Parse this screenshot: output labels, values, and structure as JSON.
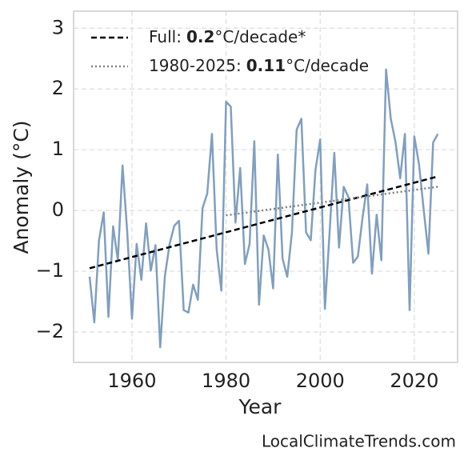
{
  "chart_data": {
    "type": "line",
    "xlabel": "Year",
    "ylabel": "Anomaly (°C)",
    "source": "LocalClimateTrends.com",
    "x": [
      1951,
      1952,
      1953,
      1954,
      1955,
      1956,
      1957,
      1958,
      1959,
      1960,
      1961,
      1962,
      1963,
      1964,
      1965,
      1966,
      1967,
      1968,
      1969,
      1970,
      1971,
      1972,
      1973,
      1974,
      1975,
      1976,
      1977,
      1978,
      1979,
      1980,
      1981,
      1982,
      1983,
      1984,
      1985,
      1986,
      1987,
      1988,
      1989,
      1990,
      1991,
      1992,
      1993,
      1994,
      1995,
      1996,
      1997,
      1998,
      1999,
      2000,
      2001,
      2002,
      2003,
      2004,
      2005,
      2006,
      2007,
      2008,
      2009,
      2010,
      2011,
      2012,
      2013,
      2014,
      2015,
      2016,
      2017,
      2018,
      2019,
      2020,
      2021,
      2022,
      2023,
      2024,
      2025
    ],
    "series": [
      {
        "color": "#809fc0",
        "values": [
          -1.09,
          -1.84,
          -0.49,
          -0.03,
          -1.75,
          -0.26,
          -0.82,
          0.74,
          -0.36,
          -1.78,
          -0.55,
          -1.14,
          -0.21,
          -0.99,
          -0.57,
          -2.25,
          -1.08,
          -0.55,
          -0.25,
          -0.17,
          -1.64,
          -1.68,
          -1.22,
          -1.47,
          0.04,
          0.28,
          1.26,
          -0.64,
          -1.32,
          1.79,
          1.71,
          -0.2,
          0.7,
          -0.88,
          -0.55,
          1.14,
          -1.55,
          -0.41,
          -0.64,
          -1.28,
          0.92,
          -0.79,
          -1.09,
          -0.36,
          1.33,
          1.51,
          -0.36,
          -0.49,
          0.67,
          1.17,
          -1.62,
          -0.36,
          0.95,
          -0.61,
          0.39,
          0.22,
          -0.86,
          -0.76,
          -0.12,
          0.43,
          -1.04,
          -0.07,
          -0.82,
          2.32,
          1.51,
          1.13,
          0.53,
          1.26,
          -1.64,
          1.22,
          0.76,
          0.01,
          -0.71,
          1.12,
          1.26
        ]
      }
    ],
    "trends": [
      {
        "label": {
          "prefix": "Full:",
          "rate": 0.2,
          "suffix": "°C/decade*"
        },
        "x": [
          1951,
          2025
        ],
        "values": [
          -0.95,
          0.56
        ],
        "color": "#000000",
        "dash": "dashed"
      },
      {
        "label": {
          "prefix": "1980-2025:",
          "rate": 0.11,
          "suffix": "°C/decade"
        },
        "x": [
          1980,
          2025
        ],
        "values": [
          -0.08,
          0.39
        ],
        "color": "#808080",
        "dash": "dotted"
      }
    ],
    "xlim": [
      1947.6,
      2029.2
    ],
    "ylim": [
      -2.5,
      3.28
    ],
    "xticks": [
      1960,
      1980,
      2000,
      2020
    ],
    "yticks": [
      {
        "value": -2,
        "label": "−2"
      },
      {
        "value": -1,
        "label": "−1"
      },
      0,
      1,
      2,
      3
    ],
    "grid": true,
    "legend": "upper left"
  }
}
